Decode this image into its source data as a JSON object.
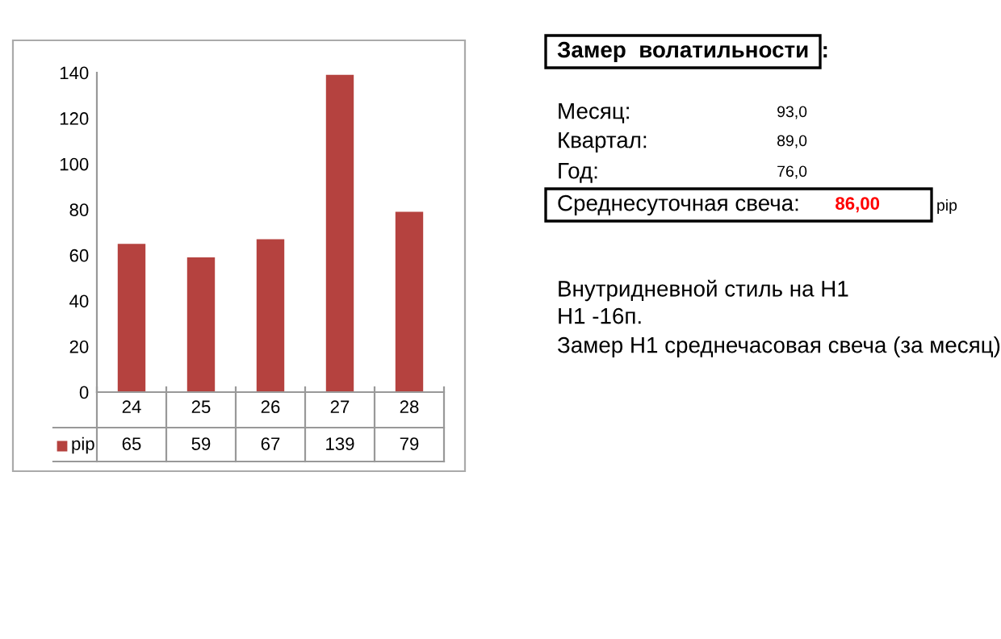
{
  "chart_data": {
    "type": "bar",
    "categories": [
      "24",
      "25",
      "26",
      "27",
      "28"
    ],
    "series": [
      {
        "name": "pip",
        "color": "#b5423f",
        "values": [
          65,
          59,
          67,
          139,
          79
        ]
      }
    ],
    "ylim": [
      0,
      140
    ],
    "yticks": [
      0,
      20,
      40,
      60,
      80,
      100,
      120,
      140
    ],
    "grid": false,
    "data_labels": true,
    "legend": "bottom",
    "annotations": [
      "Замер  волатильности  :",
      "Месяц:",
      "93,0",
      "Квартал:",
      "89,0",
      "Год:",
      "76,0",
      "Среднесуточная свеча:",
      "86,00",
      "pip",
      "Внутридневной стиль на H1",
      "H1 -16п.",
      "Замер H1 среднечасовая свеча (за месяц)"
    ]
  }
}
